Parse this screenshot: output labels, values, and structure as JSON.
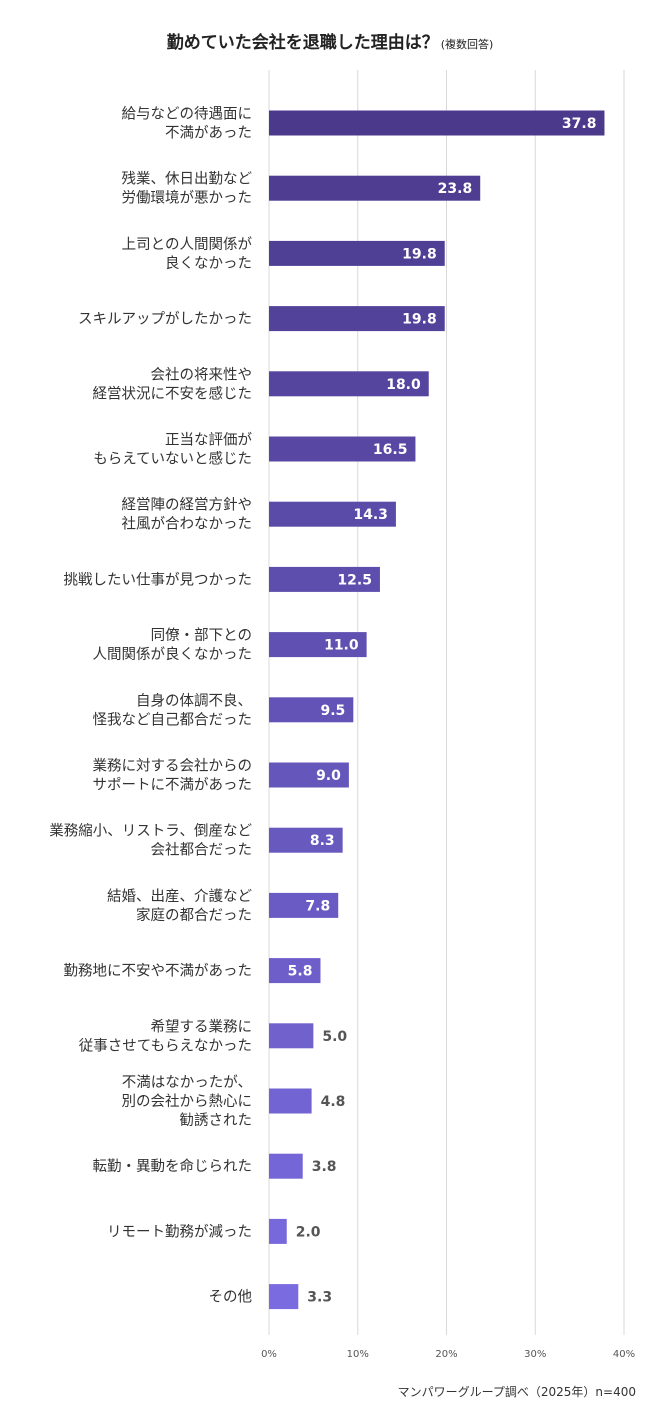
{
  "title": "勤めていた会社を退職した理由は？",
  "subtitle": "(複数回答)",
  "source": "マンパワーグループ調べ（2025年）n=400",
  "colors": {
    "bar_dark": "#4b3a8c",
    "bar_light": "#7a6ce0",
    "grid": "#d8d8d8",
    "label_in": "#ffffff",
    "label_out": "#555555"
  },
  "chart_data": {
    "type": "bar",
    "orientation": "horizontal",
    "title": "勤めていた会社を退職した理由は？",
    "categories": [
      [
        "給与などの待遇面に",
        "不満があった"
      ],
      [
        "残業、休日出勤など",
        "労働環境が悪かった"
      ],
      [
        "上司との人間関係が",
        "良くなかった"
      ],
      [
        "スキルアップがしたかった"
      ],
      [
        "会社の将来性や",
        "経営状況に不安を感じた"
      ],
      [
        "正当な評価が",
        "もらえていないと感じた"
      ],
      [
        "経営陣の経営方針や",
        "社風が合わなかった"
      ],
      [
        "挑戦したい仕事が見つかった"
      ],
      [
        "同僚・部下との",
        "人間関係が良くなかった"
      ],
      [
        "自身の体調不良、",
        "怪我など自己都合だった"
      ],
      [
        "業務に対する会社からの",
        "サポートに不満があった"
      ],
      [
        "業務縮小、リストラ、倒産など",
        "会社都合だった"
      ],
      [
        "結婚、出産、介護など",
        "家庭の都合だった"
      ],
      [
        "勤務地に不安や不満があった"
      ],
      [
        "希望する業務に",
        "従事させてもらえなかった"
      ],
      [
        "不満はなかったが、",
        "別の会社から熱心に",
        "勧誘された"
      ],
      [
        "転勤・異動を命じられた"
      ],
      [
        "リモート勤務が減った"
      ],
      [
        "その他"
      ]
    ],
    "values": [
      37.8,
      23.8,
      19.8,
      19.8,
      18.0,
      16.5,
      14.3,
      12.5,
      11.0,
      9.5,
      9.0,
      8.3,
      7.8,
      5.8,
      5.0,
      4.8,
      3.8,
      2.0,
      3.3
    ],
    "value_labels": [
      "37.8",
      "23.8",
      "19.8",
      "19.8",
      "18.0",
      "16.5",
      "14.3",
      "12.5",
      "11.0",
      "9.5",
      "9.0",
      "8.3",
      "7.8",
      "5.8",
      "5.0",
      "4.8",
      "3.8",
      "2.0",
      "3.3"
    ],
    "xlim": [
      0,
      40
    ],
    "x_ticks": [
      "0%",
      "10%",
      "20%",
      "30%",
      "40%"
    ],
    "x_tick_values": [
      0,
      10,
      20,
      30,
      40
    ],
    "grid": true
  }
}
